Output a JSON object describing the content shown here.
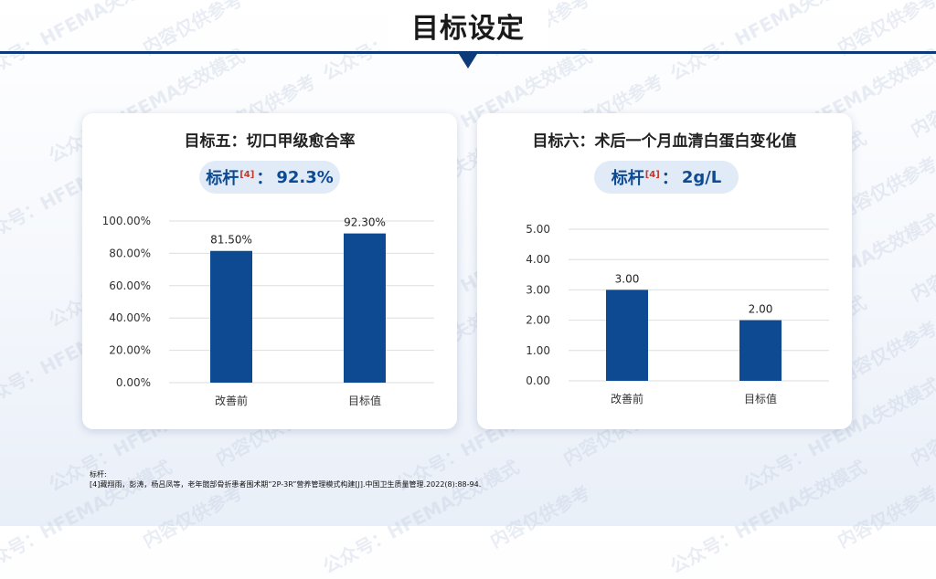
{
  "page_title": "目标设定",
  "watermark_texts": [
    "公众号：HFEMA失效模式",
    "内容仅供参考"
  ],
  "colors": {
    "bar": "#0d4a92",
    "accent": "#0d3b7a",
    "grid": "#dedede",
    "ref": "#c0392b"
  },
  "left_card": {
    "title": "目标五：切口甲级愈合率",
    "benchmark_label": "标杆",
    "benchmark_ref": "[4]",
    "benchmark_sep": "：",
    "benchmark_value": "92.3%"
  },
  "right_card": {
    "title": "目标六：术后一个月血清白蛋白变化值",
    "benchmark_label": "标杆",
    "benchmark_ref": "[4]",
    "benchmark_sep": "：",
    "benchmark_value": "2g/L"
  },
  "chart_data": [
    {
      "type": "bar",
      "categories": [
        "改善前",
        "目标值"
      ],
      "values": [
        81.5,
        92.3
      ],
      "value_labels": [
        "81.50%",
        "92.30%"
      ],
      "ylim": [
        0,
        100
      ],
      "yticks": [
        "0.00%",
        "20.00%",
        "40.00%",
        "60.00%",
        "80.00%",
        "100.00%"
      ],
      "grid": true
    },
    {
      "type": "bar",
      "categories": [
        "改善前",
        "目标值"
      ],
      "values": [
        3.0,
        2.0
      ],
      "value_labels": [
        "3.00",
        "2.00"
      ],
      "ylim": [
        0,
        5
      ],
      "yticks": [
        "0.00",
        "1.00",
        "2.00",
        "3.00",
        "4.00",
        "5.00"
      ],
      "grid": true
    }
  ],
  "footnote": {
    "heading": "标杆:",
    "text": "[4]藏翔雨，彭涛，杨吕凤等，老年髋部骨折患者围术期“2P-3R”营养管理模式构建[J].中国卫生质量管理.2022(8):88-94."
  }
}
